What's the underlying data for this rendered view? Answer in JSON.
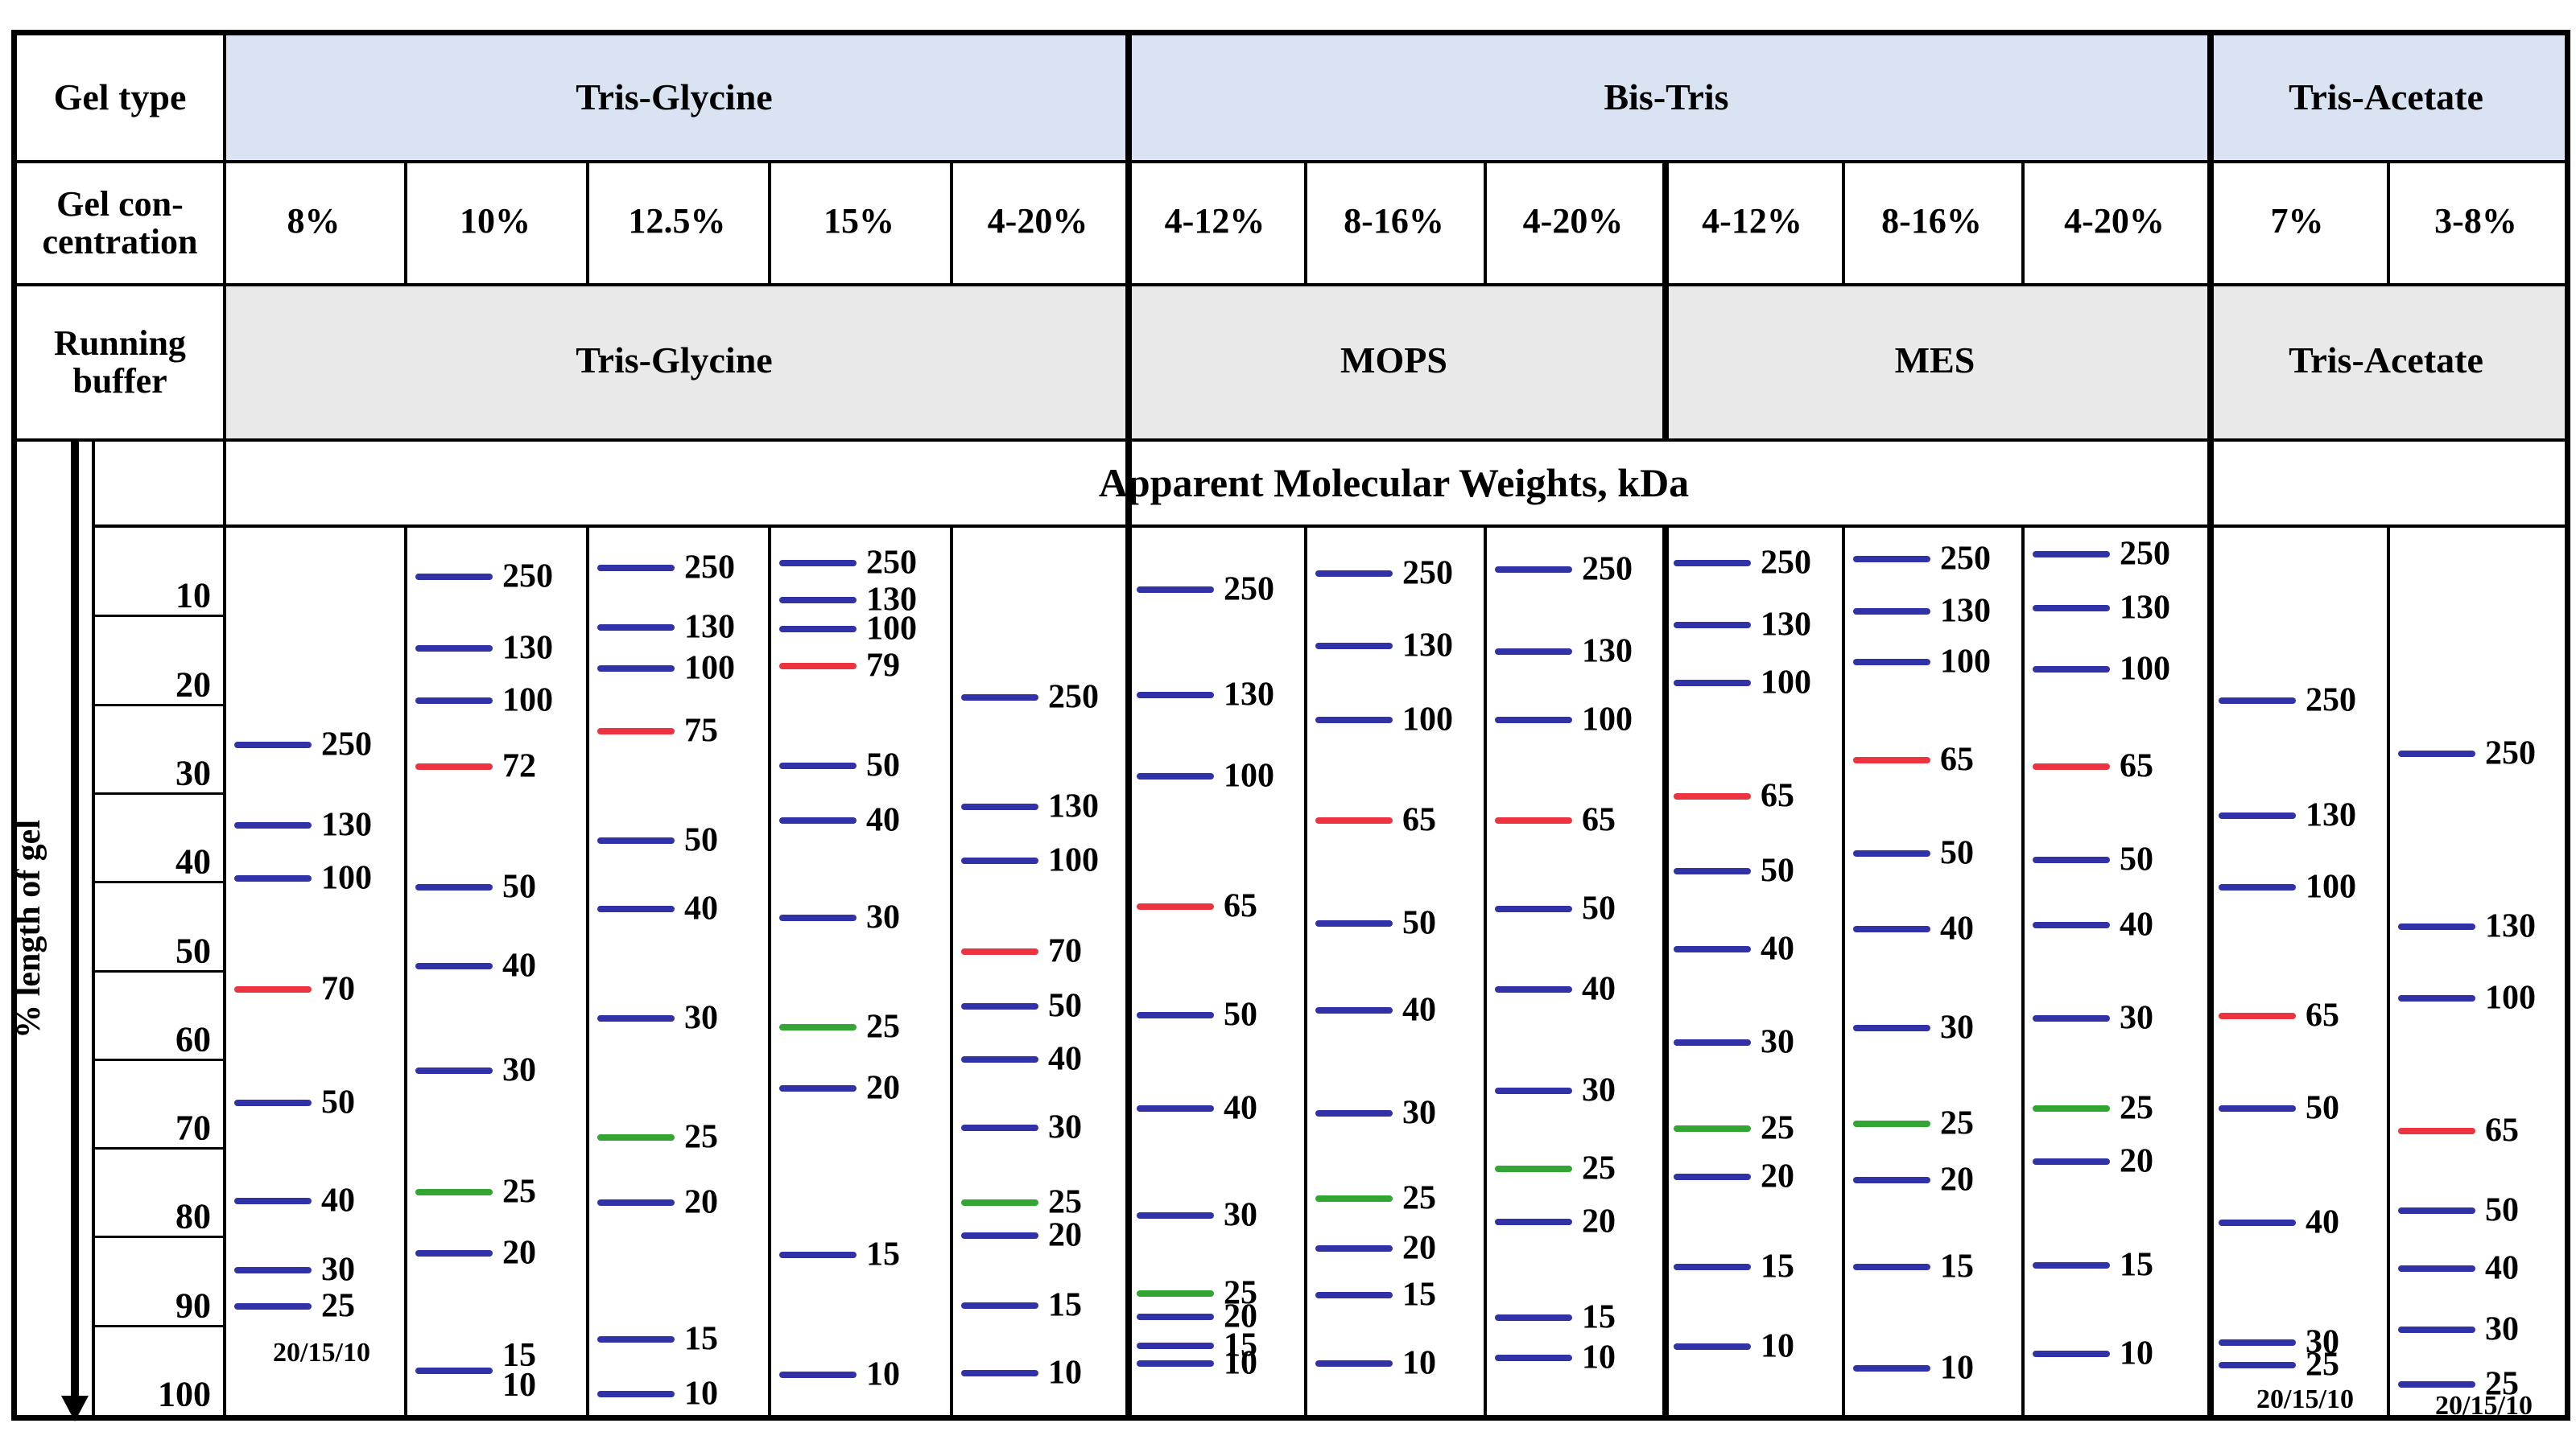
{
  "table": {
    "row_labels": {
      "gel_type": "Gel type",
      "gel_concentration_line1": "Gel con-",
      "gel_concentration_line2": "centration",
      "running_buffer_line1": "Running",
      "running_buffer_line2": "buffer"
    },
    "gel_type_groups": [
      {
        "label": "Tris-Glycine",
        "cols": 5
      },
      {
        "label": "Bis-Tris",
        "cols": 6
      },
      {
        "label": "Tris-Acetate",
        "cols": 2
      }
    ],
    "concentrations": [
      "8%",
      "10%",
      "12.5%",
      "15%",
      "4-20%",
      "4-12%",
      "8-16%",
      "4-20%",
      "4-12%",
      "8-16%",
      "4-20%",
      "7%",
      "3-8%"
    ],
    "running_buffer_groups": [
      {
        "label": "Tris-Glycine",
        "cols": 5
      },
      {
        "label": "MOPS",
        "cols": 3
      },
      {
        "label": "MES",
        "cols": 3
      },
      {
        "label": "Tris-Acetate",
        "cols": 2
      }
    ],
    "mw_title": "Apparent Molecular Weights, kDa"
  },
  "axis": {
    "label": "% length of gel",
    "ticks": [
      "10",
      "20",
      "30",
      "40",
      "50",
      "60",
      "70",
      "80",
      "90",
      "100"
    ]
  },
  "colors": {
    "band_blue": "#3232a8",
    "band_red": "#ee3340",
    "band_green": "#33a533",
    "header_blue": "#dae3f1",
    "header_gray": "#e9e9e9",
    "border": "#000000"
  },
  "chart_data": {
    "type": "table",
    "title": "Apparent Molecular Weights, kDa",
    "ylabel": "% length of gel",
    "y_ticks": [
      10,
      20,
      30,
      40,
      50,
      60,
      70,
      80,
      90,
      100
    ],
    "y_axis_meaning": "percent length of gel migrated",
    "lanes": [
      {
        "gel_type": "Tris-Glycine",
        "concentration": "8%",
        "running_buffer": "Tris-Glycine",
        "bands": [
          {
            "kda": "250",
            "percent": 24.5,
            "color": "blue"
          },
          {
            "kda": "130",
            "percent": 33.5,
            "color": "blue"
          },
          {
            "kda": "100",
            "percent": 39.5,
            "color": "blue"
          },
          {
            "kda": "70",
            "percent": 52.0,
            "color": "red"
          },
          {
            "kda": "50",
            "percent": 64.8,
            "color": "blue"
          },
          {
            "kda": "40",
            "percent": 75.9,
            "color": "blue"
          },
          {
            "kda": "30",
            "percent": 83.7,
            "color": "blue"
          },
          {
            "kda": "25",
            "percent": 87.8,
            "color": "blue"
          }
        ],
        "footnote": {
          "text": "20/15/10",
          "percent": 93.0
        }
      },
      {
        "gel_type": "Tris-Glycine",
        "concentration": "10%",
        "running_buffer": "Tris-Glycine",
        "bands": [
          {
            "kda": "250",
            "percent": 5.5,
            "color": "blue"
          },
          {
            "kda": "130",
            "percent": 13.6,
            "color": "blue"
          },
          {
            "kda": "100",
            "percent": 19.5,
            "color": "blue"
          },
          {
            "kda": "72",
            "percent": 26.9,
            "color": "red"
          },
          {
            "kda": "50",
            "percent": 40.5,
            "color": "blue"
          },
          {
            "kda": "40",
            "percent": 49.4,
            "color": "blue"
          },
          {
            "kda": "30",
            "percent": 61.2,
            "color": "blue"
          },
          {
            "kda": "25",
            "percent": 74.9,
            "color": "green"
          },
          {
            "kda": "20",
            "percent": 81.8,
            "color": "blue"
          },
          {
            "kda": "15\n10",
            "percent": 95.0,
            "color": "blue"
          }
        ],
        "footnote": null
      },
      {
        "gel_type": "Tris-Glycine",
        "concentration": "12.5%",
        "running_buffer": "Tris-Glycine",
        "bands": [
          {
            "kda": "250",
            "percent": 4.5,
            "color": "blue"
          },
          {
            "kda": "130",
            "percent": 11.2,
            "color": "blue"
          },
          {
            "kda": "100",
            "percent": 15.9,
            "color": "blue"
          },
          {
            "kda": "75",
            "percent": 22.9,
            "color": "red"
          },
          {
            "kda": "50",
            "percent": 35.3,
            "color": "blue"
          },
          {
            "kda": "40",
            "percent": 43.0,
            "color": "blue"
          },
          {
            "kda": "30",
            "percent": 55.3,
            "color": "blue"
          },
          {
            "kda": "25",
            "percent": 68.7,
            "color": "green"
          },
          {
            "kda": "20",
            "percent": 76.1,
            "color": "blue"
          },
          {
            "kda": "15",
            "percent": 91.5,
            "color": "blue"
          },
          {
            "kda": "10",
            "percent": 97.6,
            "color": "blue"
          }
        ],
        "footnote": null
      },
      {
        "gel_type": "Tris-Glycine",
        "concentration": "15%",
        "running_buffer": "Tris-Glycine",
        "bands": [
          {
            "kda": "250",
            "percent": 4.0,
            "color": "blue"
          },
          {
            "kda": "130",
            "percent": 8.2,
            "color": "blue"
          },
          {
            "kda": "100",
            "percent": 11.4,
            "color": "blue"
          },
          {
            "kda": "79",
            "percent": 15.6,
            "color": "red"
          },
          {
            "kda": "50",
            "percent": 26.8,
            "color": "blue"
          },
          {
            "kda": "40",
            "percent": 33.0,
            "color": "blue"
          },
          {
            "kda": "30",
            "percent": 44.0,
            "color": "blue"
          },
          {
            "kda": "25",
            "percent": 56.3,
            "color": "green"
          },
          {
            "kda": "20",
            "percent": 63.2,
            "color": "blue"
          },
          {
            "kda": "15",
            "percent": 82.0,
            "color": "blue"
          },
          {
            "kda": "10",
            "percent": 95.5,
            "color": "blue"
          }
        ],
        "footnote": null
      },
      {
        "gel_type": "Tris-Glycine",
        "concentration": "4-20%",
        "running_buffer": "Tris-Glycine",
        "bands": [
          {
            "kda": "250",
            "percent": 19.1,
            "color": "blue"
          },
          {
            "kda": "130",
            "percent": 31.5,
            "color": "blue"
          },
          {
            "kda": "100",
            "percent": 37.5,
            "color": "blue"
          },
          {
            "kda": "70",
            "percent": 47.8,
            "color": "red"
          },
          {
            "kda": "50",
            "percent": 53.9,
            "color": "blue"
          },
          {
            "kda": "40",
            "percent": 59.9,
            "color": "blue"
          },
          {
            "kda": "30",
            "percent": 67.6,
            "color": "blue"
          },
          {
            "kda": "25",
            "percent": 76.1,
            "color": "green"
          },
          {
            "kda": "20",
            "percent": 79.8,
            "color": "blue"
          },
          {
            "kda": "15",
            "percent": 87.7,
            "color": "blue"
          },
          {
            "kda": "10",
            "percent": 95.3,
            "color": "blue"
          }
        ],
        "footnote": null
      },
      {
        "gel_type": "Bis-Tris",
        "concentration": "4-12%",
        "running_buffer": "MOPS",
        "bands": [
          {
            "kda": "250",
            "percent": 7.0,
            "color": "blue"
          },
          {
            "kda": "130",
            "percent": 18.9,
            "color": "blue"
          },
          {
            "kda": "100",
            "percent": 28.0,
            "color": "blue"
          },
          {
            "kda": "65",
            "percent": 42.7,
            "color": "red"
          },
          {
            "kda": "50",
            "percent": 54.9,
            "color": "blue"
          },
          {
            "kda": "40",
            "percent": 65.5,
            "color": "blue"
          },
          {
            "kda": "30",
            "percent": 77.5,
            "color": "blue"
          },
          {
            "kda": "25",
            "percent": 86.3,
            "color": "green"
          },
          {
            "kda": "20",
            "percent": 88.9,
            "color": "blue"
          },
          {
            "kda": "15",
            "percent": 92.2,
            "color": "blue"
          },
          {
            "kda": "10",
            "percent": 94.2,
            "color": "blue"
          }
        ],
        "footnote": null
      },
      {
        "gel_type": "Bis-Tris",
        "concentration": "8-16%",
        "running_buffer": "MOPS",
        "bands": [
          {
            "kda": "250",
            "percent": 5.2,
            "color": "blue"
          },
          {
            "kda": "130",
            "percent": 13.3,
            "color": "blue"
          },
          {
            "kda": "100",
            "percent": 21.7,
            "color": "blue"
          },
          {
            "kda": "65",
            "percent": 33.0,
            "color": "red"
          },
          {
            "kda": "50",
            "percent": 44.6,
            "color": "blue"
          },
          {
            "kda": "40",
            "percent": 54.4,
            "color": "blue"
          },
          {
            "kda": "30",
            "percent": 66.0,
            "color": "blue"
          },
          {
            "kda": "25",
            "percent": 75.6,
            "color": "green"
          },
          {
            "kda": "20",
            "percent": 81.2,
            "color": "blue"
          },
          {
            "kda": "15",
            "percent": 86.5,
            "color": "blue"
          },
          {
            "kda": "10",
            "percent": 94.2,
            "color": "blue"
          }
        ],
        "footnote": null
      },
      {
        "gel_type": "Bis-Tris",
        "concentration": "4-20%",
        "running_buffer": "MOPS",
        "bands": [
          {
            "kda": "250",
            "percent": 4.7,
            "color": "blue"
          },
          {
            "kda": "130",
            "percent": 14.0,
            "color": "blue"
          },
          {
            "kda": "100",
            "percent": 21.7,
            "color": "blue"
          },
          {
            "kda": "65",
            "percent": 33.0,
            "color": "red"
          },
          {
            "kda": "50",
            "percent": 43.0,
            "color": "blue"
          },
          {
            "kda": "40",
            "percent": 52.0,
            "color": "blue"
          },
          {
            "kda": "30",
            "percent": 63.5,
            "color": "blue"
          },
          {
            "kda": "25",
            "percent": 72.3,
            "color": "green"
          },
          {
            "kda": "20",
            "percent": 78.2,
            "color": "blue"
          },
          {
            "kda": "15",
            "percent": 89.0,
            "color": "blue"
          },
          {
            "kda": "10",
            "percent": 93.6,
            "color": "blue"
          }
        ],
        "footnote": null
      },
      {
        "gel_type": "Bis-Tris",
        "concentration": "4-12%",
        "running_buffer": "MES",
        "bands": [
          {
            "kda": "250",
            "percent": 4.0,
            "color": "blue"
          },
          {
            "kda": "130",
            "percent": 11.0,
            "color": "blue"
          },
          {
            "kda": "100",
            "percent": 17.5,
            "color": "blue"
          },
          {
            "kda": "65",
            "percent": 30.3,
            "color": "red"
          },
          {
            "kda": "50",
            "percent": 38.7,
            "color": "blue"
          },
          {
            "kda": "40",
            "percent": 47.5,
            "color": "blue"
          },
          {
            "kda": "30",
            "percent": 58.0,
            "color": "blue"
          },
          {
            "kda": "25",
            "percent": 67.7,
            "color": "green"
          },
          {
            "kda": "20",
            "percent": 73.2,
            "color": "blue"
          },
          {
            "kda": "15",
            "percent": 83.3,
            "color": "blue"
          },
          {
            "kda": "10",
            "percent": 92.3,
            "color": "blue"
          }
        ],
        "footnote": null
      },
      {
        "gel_type": "Bis-Tris",
        "concentration": "8-16%",
        "running_buffer": "MES",
        "bands": [
          {
            "kda": "250",
            "percent": 3.5,
            "color": "blue"
          },
          {
            "kda": "130",
            "percent": 9.4,
            "color": "blue"
          },
          {
            "kda": "100",
            "percent": 15.1,
            "color": "blue"
          },
          {
            "kda": "65",
            "percent": 26.2,
            "color": "red"
          },
          {
            "kda": "50",
            "percent": 36.7,
            "color": "blue"
          },
          {
            "kda": "40",
            "percent": 45.2,
            "color": "blue"
          },
          {
            "kda": "30",
            "percent": 56.4,
            "color": "blue"
          },
          {
            "kda": "25",
            "percent": 67.2,
            "color": "green"
          },
          {
            "kda": "20",
            "percent": 73.5,
            "color": "blue"
          },
          {
            "kda": "15",
            "percent": 83.3,
            "color": "blue"
          },
          {
            "kda": "10",
            "percent": 94.7,
            "color": "blue"
          }
        ],
        "footnote": null
      },
      {
        "gel_type": "Bis-Tris",
        "concentration": "4-20%",
        "running_buffer": "MES",
        "bands": [
          {
            "kda": "250",
            "percent": 3.0,
            "color": "blue"
          },
          {
            "kda": "130",
            "percent": 9.1,
            "color": "blue"
          },
          {
            "kda": "100",
            "percent": 16.0,
            "color": "blue"
          },
          {
            "kda": "65",
            "percent": 26.9,
            "color": "red"
          },
          {
            "kda": "50",
            "percent": 37.4,
            "color": "blue"
          },
          {
            "kda": "40",
            "percent": 44.8,
            "color": "blue"
          },
          {
            "kda": "30",
            "percent": 55.3,
            "color": "blue"
          },
          {
            "kda": "25",
            "percent": 65.5,
            "color": "green"
          },
          {
            "kda": "20",
            "percent": 71.4,
            "color": "blue"
          },
          {
            "kda": "15",
            "percent": 83.1,
            "color": "blue"
          },
          {
            "kda": "10",
            "percent": 93.1,
            "color": "blue"
          }
        ],
        "footnote": null
      },
      {
        "gel_type": "Tris-Acetate",
        "concentration": "7%",
        "running_buffer": "Tris-Acetate",
        "bands": [
          {
            "kda": "250",
            "percent": 19.5,
            "color": "blue"
          },
          {
            "kda": "130",
            "percent": 32.5,
            "color": "blue"
          },
          {
            "kda": "100",
            "percent": 40.5,
            "color": "blue"
          },
          {
            "kda": "65",
            "percent": 55.0,
            "color": "red"
          },
          {
            "kda": "50",
            "percent": 65.5,
            "color": "blue"
          },
          {
            "kda": "40",
            "percent": 78.3,
            "color": "blue"
          },
          {
            "kda": "30",
            "percent": 91.8,
            "color": "blue"
          },
          {
            "kda": "25",
            "percent": 94.4,
            "color": "blue"
          }
        ],
        "footnote": {
          "text": "20/15/10",
          "percent": 98.3
        }
      },
      {
        "gel_type": "Tris-Acetate",
        "concentration": "3-8%",
        "running_buffer": "Tris-Acetate",
        "bands": [
          {
            "kda": "250",
            "percent": 25.5,
            "color": "blue"
          },
          {
            "kda": "130",
            "percent": 45.0,
            "color": "blue"
          },
          {
            "kda": "100",
            "percent": 53.0,
            "color": "blue"
          },
          {
            "kda": "65",
            "percent": 68.0,
            "color": "red"
          },
          {
            "kda": "50",
            "percent": 77.0,
            "color": "blue"
          },
          {
            "kda": "40",
            "percent": 83.5,
            "color": "blue"
          },
          {
            "kda": "30",
            "percent": 90.4,
            "color": "blue"
          },
          {
            "kda": "25",
            "percent": 96.6,
            "color": "blue"
          }
        ],
        "footnote": {
          "text": "20/15/10",
          "percent": 99.0
        }
      }
    ]
  }
}
